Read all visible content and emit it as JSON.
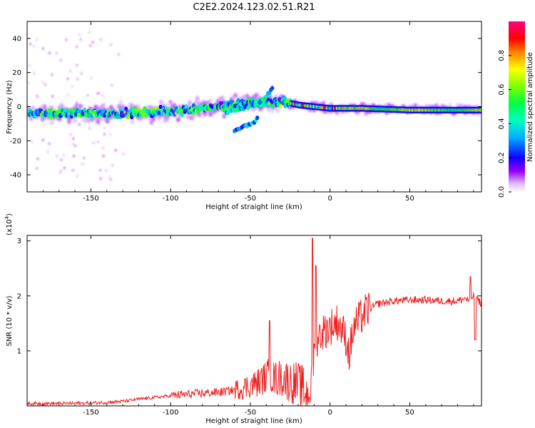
{
  "title": "C2E2.2024.123.02.51.R21",
  "chart_data": [
    {
      "type": "heatmap",
      "xlabel": "Height of straight line (km)",
      "ylabel": "Frequency (Hz)",
      "xlim": [
        -190,
        95
      ],
      "ylim": [
        -50,
        50
      ],
      "xticks": [
        -150,
        -100,
        -50,
        0,
        50
      ],
      "yticks": [
        -40,
        -20,
        0,
        20,
        40
      ],
      "colorbar": {
        "label": "Normalized spectral amplitude",
        "range": [
          0,
          1
        ],
        "ticks": [
          "0.0",
          "0.2",
          "0.4",
          "0.6",
          "0.8"
        ],
        "colormap": [
          "#ffffff",
          "#cc88ff",
          "#8800ff",
          "#0000ff",
          "#00ccff",
          "#00ff66",
          "#66ff00",
          "#ffff00",
          "#ff8800",
          "#ff0000",
          "#ff0066"
        ]
      },
      "main_ridge": {
        "x": [
          -190,
          -170,
          -150,
          -130,
          -110,
          -90,
          -70,
          -60,
          -50,
          -40,
          -30,
          -20,
          -10,
          0,
          20,
          50,
          80,
          95
        ],
        "y": [
          -4,
          -4,
          -4,
          -4,
          -3,
          -2,
          0,
          1,
          2,
          2,
          3,
          1,
          0,
          -1,
          -1,
          -2,
          -2,
          -2
        ]
      },
      "secondary_branches": [
        {
          "x": [
            -65,
            -55,
            -45,
            -40,
            -36
          ],
          "y": [
            -3,
            -1,
            2,
            6,
            11
          ]
        },
        {
          "x": [
            -60,
            -55,
            -50,
            -45
          ],
          "y": [
            -14,
            -12,
            -10,
            -7
          ]
        }
      ]
    },
    {
      "type": "line",
      "xlabel": "Height of straight line (km)",
      "ylabel": "SNR (10 * v/v)",
      "y_multiplier": "(x10",
      "y_multiplier_exp": "4",
      "y_multiplier_close": ")",
      "xlim": [
        -190,
        95
      ],
      "ylim": [
        0,
        3.1
      ],
      "xticks": [
        -150,
        -100,
        -50,
        0,
        50
      ],
      "yticks": [
        1,
        2,
        3
      ],
      "color": "#ee2222",
      "series": [
        {
          "x": [
            -190,
            -170,
            -150,
            -140,
            -130,
            -120,
            -110,
            -100,
            -90,
            -80,
            -70,
            -60,
            -55,
            -50,
            -45,
            -40,
            -38,
            -35,
            -30,
            -25,
            -20,
            -15,
            -12,
            -10,
            -8,
            -5,
            0,
            5,
            10,
            12,
            15,
            20,
            25,
            30,
            40,
            50,
            60,
            70,
            80,
            85,
            87,
            90,
            95
          ],
          "y": [
            0.04,
            0.04,
            0.05,
            0.06,
            0.08,
            0.12,
            0.15,
            0.18,
            0.2,
            0.22,
            0.24,
            0.28,
            0.3,
            0.35,
            0.4,
            0.5,
            0.55,
            0.45,
            0.48,
            0.4,
            0.35,
            0.2,
            0.25,
            0.9,
            1.2,
            1.3,
            1.4,
            1.5,
            1.2,
            0.9,
            1.4,
            1.6,
            1.75,
            1.85,
            1.9,
            1.92,
            1.92,
            1.9,
            1.9,
            1.95,
            1.9,
            2.0,
            1.85
          ]
        }
      ],
      "peaks": [
        {
          "x": -38,
          "y": 1.55
        },
        {
          "x": -11,
          "y": 3.05
        },
        {
          "x": -9,
          "y": 2.55
        },
        {
          "x": 88,
          "y": 2.35
        },
        {
          "x": 91,
          "y": 1.2
        }
      ]
    }
  ]
}
